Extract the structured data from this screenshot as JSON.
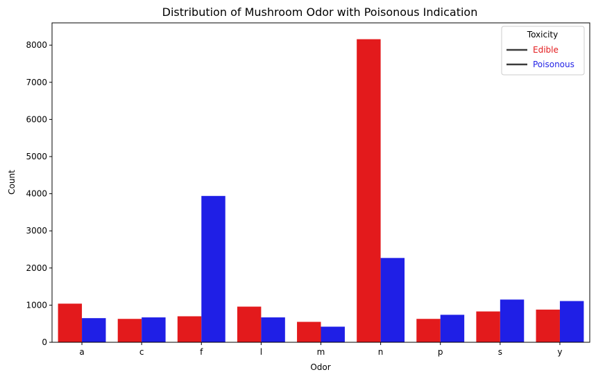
{
  "chart_data": {
    "type": "bar",
    "title": "Distribution of Mushroom Odor with Poisonous Indication",
    "xlabel": "Odor",
    "ylabel": "Count",
    "categories": [
      "a",
      "c",
      "f",
      "l",
      "m",
      "n",
      "p",
      "s",
      "y"
    ],
    "series": [
      {
        "name": "Edible",
        "color": "#e31a1c",
        "values": [
          1040,
          630,
          700,
          960,
          550,
          8160,
          630,
          830,
          880
        ]
      },
      {
        "name": "Poisonous",
        "color": "#1f1fe6",
        "values": [
          650,
          670,
          3940,
          670,
          420,
          2270,
          740,
          1150,
          1110
        ]
      }
    ],
    "ylim": [
      0,
      8600
    ],
    "yticks": [
      0,
      1000,
      2000,
      3000,
      4000,
      5000,
      6000,
      7000,
      8000
    ],
    "grid": false,
    "legend": {
      "title": "Toxicity",
      "position": "top-right",
      "line_color": "#3a3a3a"
    }
  }
}
